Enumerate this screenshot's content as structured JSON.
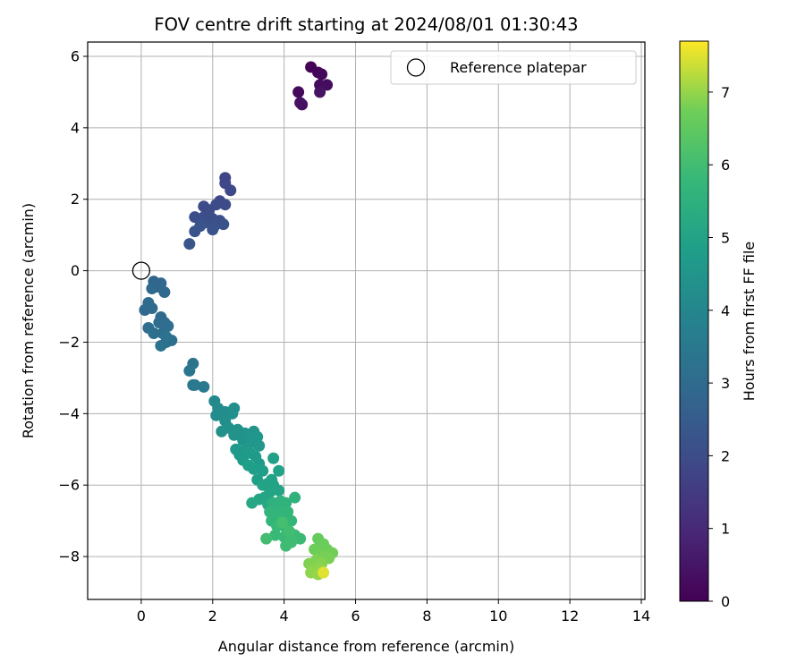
{
  "chart_data": {
    "type": "scatter",
    "title": "FOV centre drift starting at 2024/08/01 01:30:43",
    "xlabel": "Angular distance from reference (arcmin)",
    "ylabel": "Rotation from reference (arcmin)",
    "xlim": [
      -1.5,
      14.1
    ],
    "ylim": [
      -9.2,
      6.4
    ],
    "xticks": [
      0,
      2,
      4,
      6,
      8,
      10,
      12,
      14
    ],
    "yticks": [
      -8,
      -6,
      -4,
      -2,
      0,
      2,
      4,
      6
    ],
    "grid": true,
    "legend": {
      "placement": "top-right",
      "entries": [
        "Reference platepar"
      ]
    },
    "reference_point": {
      "x": 0,
      "y": 0,
      "label": "Reference platepar"
    },
    "colorbar": {
      "label": "Hours from first FF file",
      "colormap": "viridis",
      "range": [
        0,
        7.7
      ],
      "ticks": [
        0,
        1,
        2,
        3,
        4,
        5,
        6,
        7
      ]
    },
    "points": [
      {
        "x": 4.75,
        "y": 5.7,
        "h": 0.05
      },
      {
        "x": 4.95,
        "y": 5.55,
        "h": 0.1
      },
      {
        "x": 5.05,
        "y": 5.5,
        "h": 0.15
      },
      {
        "x": 4.4,
        "y": 5.0,
        "h": 0.2
      },
      {
        "x": 5.0,
        "y": 5.2,
        "h": 0.25
      },
      {
        "x": 5.2,
        "y": 5.2,
        "h": 0.3
      },
      {
        "x": 4.5,
        "y": 4.65,
        "h": 0.35
      },
      {
        "x": 4.45,
        "y": 4.7,
        "h": 0.4
      },
      {
        "x": 5.0,
        "y": 5.0,
        "h": 0.45
      },
      {
        "x": 2.35,
        "y": 2.6,
        "h": 1.8
      },
      {
        "x": 2.35,
        "y": 2.45,
        "h": 1.85
      },
      {
        "x": 2.5,
        "y": 2.25,
        "h": 1.9
      },
      {
        "x": 2.2,
        "y": 1.95,
        "h": 1.9
      },
      {
        "x": 2.1,
        "y": 1.85,
        "h": 1.95
      },
      {
        "x": 2.35,
        "y": 1.85,
        "h": 1.95
      },
      {
        "x": 1.75,
        "y": 1.8,
        "h": 2.0
      },
      {
        "x": 1.9,
        "y": 1.7,
        "h": 2.0
      },
      {
        "x": 1.5,
        "y": 1.5,
        "h": 2.05
      },
      {
        "x": 1.75,
        "y": 1.5,
        "h": 2.05
      },
      {
        "x": 2.0,
        "y": 1.45,
        "h": 2.1
      },
      {
        "x": 2.2,
        "y": 1.4,
        "h": 2.1
      },
      {
        "x": 2.3,
        "y": 1.3,
        "h": 2.15
      },
      {
        "x": 1.8,
        "y": 1.35,
        "h": 2.15
      },
      {
        "x": 2.05,
        "y": 1.25,
        "h": 2.2
      },
      {
        "x": 1.65,
        "y": 1.25,
        "h": 2.2
      },
      {
        "x": 2.0,
        "y": 1.15,
        "h": 2.25
      },
      {
        "x": 1.5,
        "y": 1.1,
        "h": 2.25
      },
      {
        "x": 1.35,
        "y": 0.75,
        "h": 2.3
      },
      {
        "x": 1.9,
        "y": 1.55,
        "h": 2.05
      },
      {
        "x": 0.35,
        "y": -0.3,
        "h": 2.8
      },
      {
        "x": 0.45,
        "y": -0.45,
        "h": 2.85
      },
      {
        "x": 0.55,
        "y": -0.35,
        "h": 2.85
      },
      {
        "x": 0.65,
        "y": -0.6,
        "h": 2.9
      },
      {
        "x": 0.3,
        "y": -0.5,
        "h": 2.9
      },
      {
        "x": 0.2,
        "y": -0.9,
        "h": 2.95
      },
      {
        "x": 0.1,
        "y": -1.1,
        "h": 2.95
      },
      {
        "x": 0.3,
        "y": -1.05,
        "h": 3.0
      },
      {
        "x": 0.55,
        "y": -1.3,
        "h": 3.0
      },
      {
        "x": 0.65,
        "y": -1.45,
        "h": 3.05
      },
      {
        "x": 0.5,
        "y": -1.45,
        "h": 3.05
      },
      {
        "x": 0.75,
        "y": -1.55,
        "h": 3.1
      },
      {
        "x": 0.2,
        "y": -1.6,
        "h": 3.1
      },
      {
        "x": 0.35,
        "y": -1.75,
        "h": 3.15
      },
      {
        "x": 0.6,
        "y": -1.75,
        "h": 3.15
      },
      {
        "x": 0.85,
        "y": -1.95,
        "h": 3.2
      },
      {
        "x": 0.7,
        "y": -2.0,
        "h": 3.2
      },
      {
        "x": 0.55,
        "y": -2.1,
        "h": 3.25
      },
      {
        "x": 0.7,
        "y": -1.85,
        "h": 3.25
      },
      {
        "x": 1.45,
        "y": -2.6,
        "h": 3.35
      },
      {
        "x": 1.35,
        "y": -2.8,
        "h": 3.4
      },
      {
        "x": 1.45,
        "y": -3.2,
        "h": 3.45
      },
      {
        "x": 1.75,
        "y": -3.25,
        "h": 3.5
      },
      {
        "x": 1.5,
        "y": -3.2,
        "h": 3.5
      },
      {
        "x": 2.05,
        "y": -3.65,
        "h": 4.1
      },
      {
        "x": 2.15,
        "y": -3.85,
        "h": 4.15
      },
      {
        "x": 2.35,
        "y": -3.95,
        "h": 4.2
      },
      {
        "x": 2.1,
        "y": -4.05,
        "h": 4.2
      },
      {
        "x": 2.6,
        "y": -3.85,
        "h": 4.25
      },
      {
        "x": 2.55,
        "y": -4.0,
        "h": 4.3
      },
      {
        "x": 2.35,
        "y": -4.2,
        "h": 4.3
      },
      {
        "x": 2.45,
        "y": -4.4,
        "h": 4.35
      },
      {
        "x": 2.25,
        "y": -4.5,
        "h": 4.35
      },
      {
        "x": 2.7,
        "y": -4.45,
        "h": 4.4
      },
      {
        "x": 2.6,
        "y": -4.6,
        "h": 4.4
      },
      {
        "x": 2.9,
        "y": -4.55,
        "h": 4.45
      },
      {
        "x": 2.85,
        "y": -4.75,
        "h": 4.45
      },
      {
        "x": 3.0,
        "y": -4.6,
        "h": 4.5
      },
      {
        "x": 3.15,
        "y": -4.5,
        "h": 4.5
      },
      {
        "x": 3.25,
        "y": -4.65,
        "h": 4.55
      },
      {
        "x": 3.1,
        "y": -4.8,
        "h": 4.55
      },
      {
        "x": 3.3,
        "y": -4.9,
        "h": 4.6
      },
      {
        "x": 2.95,
        "y": -4.95,
        "h": 4.6
      },
      {
        "x": 2.65,
        "y": -5.0,
        "h": 4.65
      },
      {
        "x": 2.75,
        "y": -5.15,
        "h": 4.65
      },
      {
        "x": 3.05,
        "y": -5.1,
        "h": 4.7
      },
      {
        "x": 3.2,
        "y": -5.2,
        "h": 4.7
      },
      {
        "x": 2.85,
        "y": -5.3,
        "h": 4.75
      },
      {
        "x": 3.3,
        "y": -5.4,
        "h": 4.75
      },
      {
        "x": 3.15,
        "y": -5.55,
        "h": 4.8
      },
      {
        "x": 3.4,
        "y": -5.6,
        "h": 4.8
      },
      {
        "x": 3.0,
        "y": -5.45,
        "h": 4.85
      },
      {
        "x": 3.25,
        "y": -5.85,
        "h": 4.85
      },
      {
        "x": 3.55,
        "y": -5.95,
        "h": 4.9
      },
      {
        "x": 3.7,
        "y": -5.25,
        "h": 4.9
      },
      {
        "x": 3.85,
        "y": -5.6,
        "h": 4.95
      },
      {
        "x": 3.65,
        "y": -5.85,
        "h": 4.95
      },
      {
        "x": 3.4,
        "y": -6.0,
        "h": 5.0
      },
      {
        "x": 3.7,
        "y": -6.0,
        "h": 5.0
      },
      {
        "x": 3.85,
        "y": -6.15,
        "h": 5.05
      },
      {
        "x": 3.6,
        "y": -6.2,
        "h": 5.05
      },
      {
        "x": 3.45,
        "y": -6.35,
        "h": 5.1
      },
      {
        "x": 3.3,
        "y": -6.4,
        "h": 5.1
      },
      {
        "x": 3.1,
        "y": -6.5,
        "h": 5.15
      },
      {
        "x": 3.55,
        "y": -6.55,
        "h": 5.15
      },
      {
        "x": 3.7,
        "y": -6.5,
        "h": 5.5
      },
      {
        "x": 3.9,
        "y": -6.45,
        "h": 5.55
      },
      {
        "x": 4.05,
        "y": -6.5,
        "h": 5.6
      },
      {
        "x": 4.3,
        "y": -6.35,
        "h": 5.6
      },
      {
        "x": 3.6,
        "y": -6.75,
        "h": 5.65
      },
      {
        "x": 3.85,
        "y": -6.75,
        "h": 5.65
      },
      {
        "x": 4.1,
        "y": -6.75,
        "h": 5.7
      },
      {
        "x": 3.65,
        "y": -7.0,
        "h": 5.7
      },
      {
        "x": 3.9,
        "y": -6.95,
        "h": 5.75
      },
      {
        "x": 4.2,
        "y": -7.0,
        "h": 5.75
      },
      {
        "x": 3.8,
        "y": -7.15,
        "h": 5.8
      },
      {
        "x": 4.05,
        "y": -7.2,
        "h": 5.8
      },
      {
        "x": 3.75,
        "y": -7.4,
        "h": 5.85
      },
      {
        "x": 4.0,
        "y": -7.45,
        "h": 5.85
      },
      {
        "x": 4.3,
        "y": -7.4,
        "h": 5.9
      },
      {
        "x": 4.45,
        "y": -7.5,
        "h": 5.9
      },
      {
        "x": 4.2,
        "y": -7.6,
        "h": 5.95
      },
      {
        "x": 4.05,
        "y": -7.7,
        "h": 5.95
      },
      {
        "x": 3.5,
        "y": -7.5,
        "h": 6.0
      },
      {
        "x": 4.15,
        "y": -7.3,
        "h": 6.0
      },
      {
        "x": 3.95,
        "y": -7.05,
        "h": 6.05
      },
      {
        "x": 4.95,
        "y": -7.5,
        "h": 6.6
      },
      {
        "x": 5.1,
        "y": -7.65,
        "h": 6.65
      },
      {
        "x": 5.2,
        "y": -7.8,
        "h": 6.7
      },
      {
        "x": 4.85,
        "y": -7.8,
        "h": 6.7
      },
      {
        "x": 5.35,
        "y": -7.9,
        "h": 6.75
      },
      {
        "x": 5.0,
        "y": -7.95,
        "h": 6.75
      },
      {
        "x": 5.15,
        "y": -8.0,
        "h": 6.8
      },
      {
        "x": 5.25,
        "y": -8.05,
        "h": 6.8
      },
      {
        "x": 4.9,
        "y": -8.1,
        "h": 6.85
      },
      {
        "x": 4.7,
        "y": -8.2,
        "h": 6.85
      },
      {
        "x": 5.05,
        "y": -8.2,
        "h": 6.9
      },
      {
        "x": 4.8,
        "y": -8.3,
        "h": 6.9
      },
      {
        "x": 5.0,
        "y": -8.35,
        "h": 6.95
      },
      {
        "x": 4.75,
        "y": -8.45,
        "h": 6.95
      },
      {
        "x": 4.95,
        "y": -8.5,
        "h": 7.0
      },
      {
        "x": 5.1,
        "y": -8.45,
        "h": 7.5
      }
    ]
  }
}
